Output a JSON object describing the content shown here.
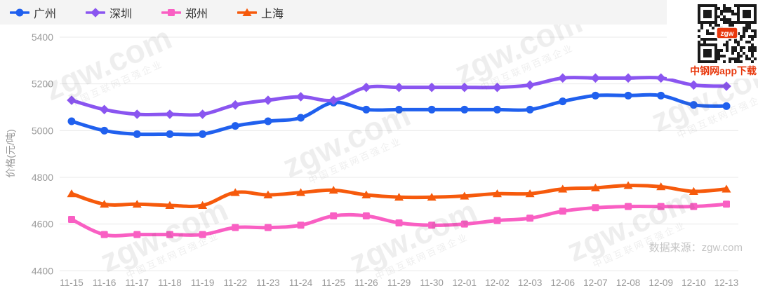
{
  "legend": {
    "items": [
      {
        "label": "广州",
        "color": "#2060ee",
        "symbol": "circle"
      },
      {
        "label": "深圳",
        "color": "#8a55f0",
        "symbol": "diamond"
      },
      {
        "label": "郑州",
        "color": "#f95fc3",
        "symbol": "square"
      },
      {
        "label": "上海",
        "color": "#f65a0c",
        "symbol": "triangle"
      }
    ]
  },
  "chart_data": {
    "type": "line",
    "title": "",
    "xlabel": "",
    "ylabel": "价格(元/吨)",
    "ylim": [
      4400,
      5400
    ],
    "ytick_step": 200,
    "yticks": [
      4400,
      4600,
      4800,
      5000,
      5200,
      5400
    ],
    "grid": true,
    "legend_position": "top-left",
    "smooth": true,
    "categories": [
      "11-15",
      "11-16",
      "11-17",
      "11-18",
      "11-19",
      "11-22",
      "11-23",
      "11-24",
      "11-25",
      "11-26",
      "11-29",
      "11-30",
      "12-01",
      "12-02",
      "12-03",
      "12-06",
      "12-07",
      "12-08",
      "12-09",
      "12-10",
      "12-13"
    ],
    "series": [
      {
        "name": "广州",
        "color": "#2060ee",
        "symbol": "circle",
        "values": [
          5040,
          5000,
          4985,
          4985,
          4985,
          5020,
          5040,
          5055,
          5120,
          5090,
          5090,
          5090,
          5090,
          5090,
          5090,
          5125,
          5150,
          5150,
          5150,
          5110,
          5105
        ]
      },
      {
        "name": "深圳",
        "color": "#8a55f0",
        "symbol": "diamond",
        "values": [
          5130,
          5090,
          5070,
          5070,
          5070,
          5110,
          5130,
          5145,
          5130,
          5185,
          5185,
          5185,
          5185,
          5185,
          5195,
          5225,
          5225,
          5225,
          5225,
          5195,
          5190
        ]
      },
      {
        "name": "郑州",
        "color": "#f95fc3",
        "symbol": "square",
        "values": [
          4620,
          4555,
          4555,
          4555,
          4555,
          4585,
          4585,
          4595,
          4635,
          4635,
          4605,
          4595,
          4600,
          4615,
          4625,
          4655,
          4670,
          4675,
          4675,
          4675,
          4685
        ]
      },
      {
        "name": "上海",
        "color": "#f65a0c",
        "symbol": "triangle",
        "values": [
          4730,
          4685,
          4685,
          4680,
          4680,
          4735,
          4725,
          4735,
          4745,
          4725,
          4715,
          4715,
          4720,
          4730,
          4730,
          4750,
          4755,
          4765,
          4760,
          4740,
          4750
        ]
      }
    ]
  },
  "watermark": {
    "brand": "zgw.com",
    "slogan": "中国互联网百强企业"
  },
  "qr": {
    "caption": "中钢网app下载",
    "badge": "zgw"
  },
  "source": {
    "text": "数据来源：zgw.com"
  }
}
